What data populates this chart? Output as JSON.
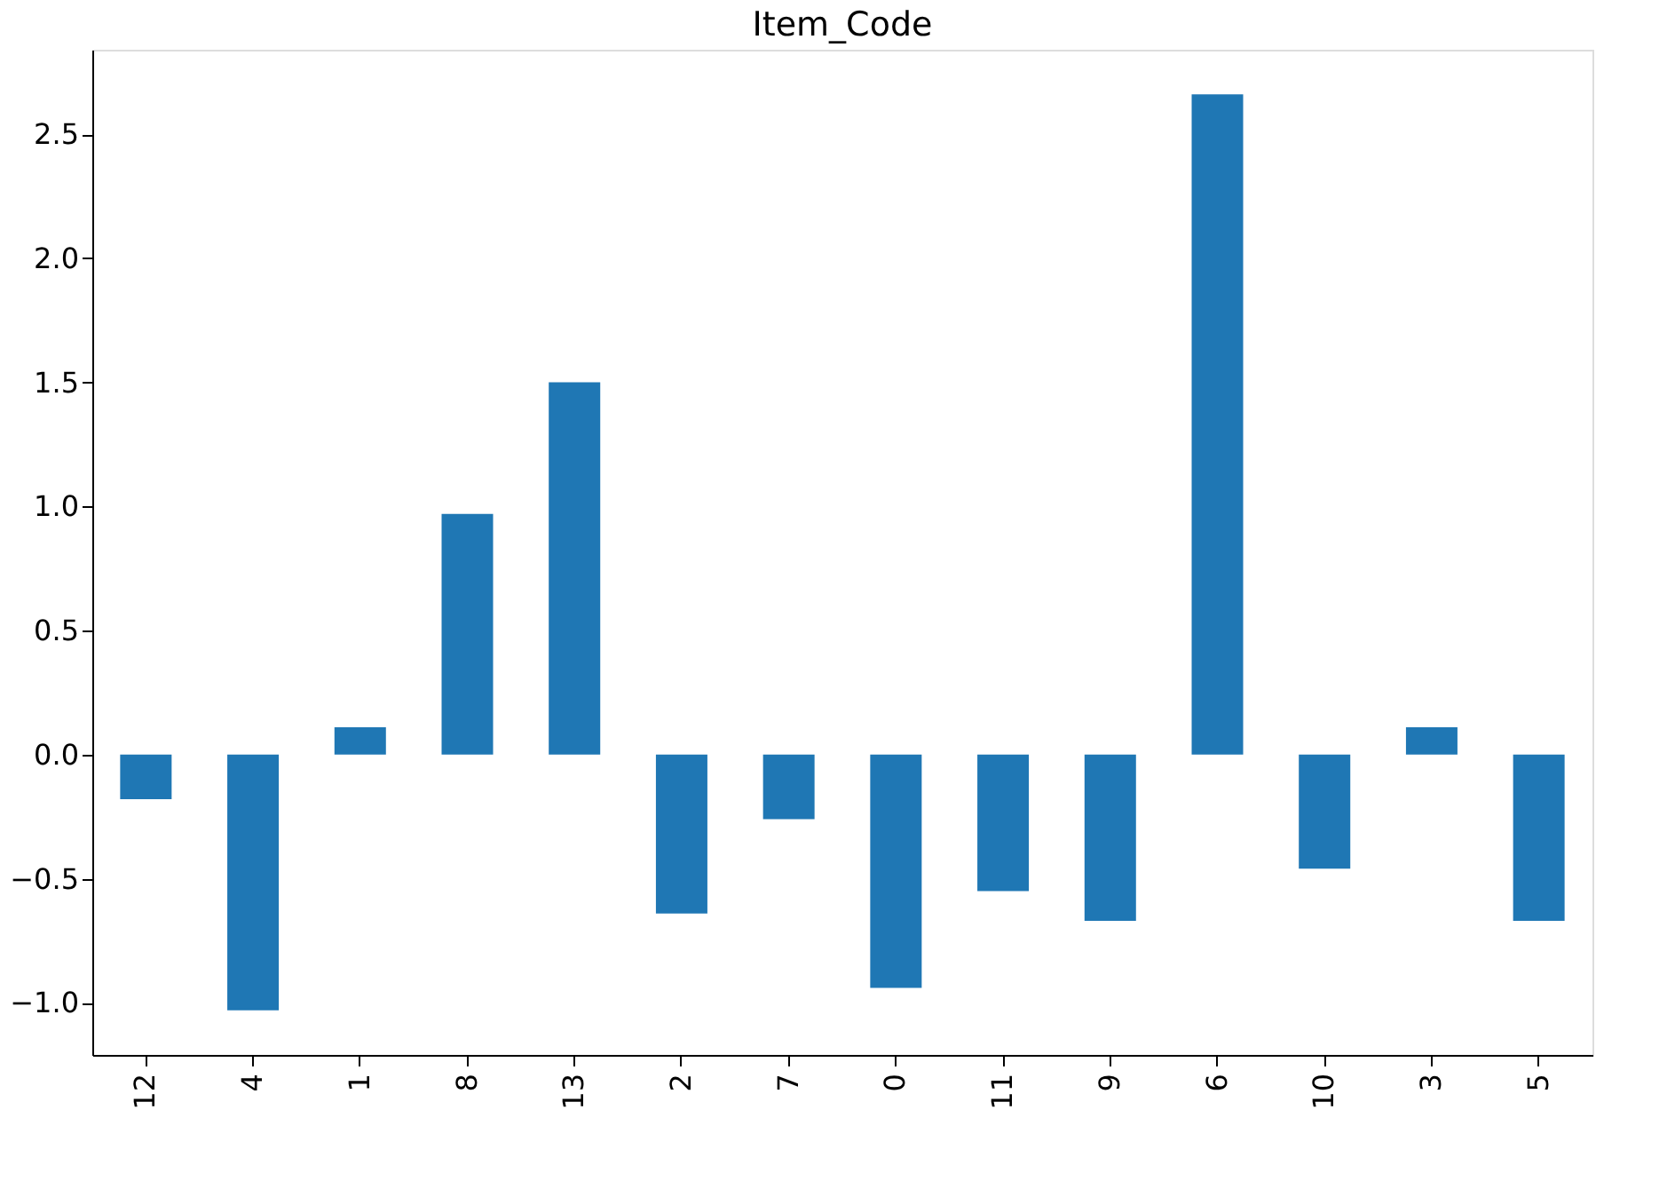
{
  "chart_data": {
    "type": "bar",
    "title": "Item_Code",
    "categories": [
      "12",
      "4",
      "1",
      "8",
      "13",
      "2",
      "7",
      "0",
      "11",
      "9",
      "6",
      "10",
      "3",
      "5"
    ],
    "values": [
      -0.18,
      -1.03,
      0.11,
      0.97,
      1.5,
      -0.64,
      -0.26,
      -0.94,
      -0.55,
      -0.67,
      2.66,
      -0.46,
      0.11,
      -0.67
    ],
    "color": "#1f77b4",
    "ylim": [
      -1.21,
      2.84
    ],
    "yticks": [
      {
        "value": -1.0,
        "label": "−1.0"
      },
      {
        "value": -0.5,
        "label": "−0.5"
      },
      {
        "value": 0.0,
        "label": "0.0"
      },
      {
        "value": 0.5,
        "label": "0.5"
      },
      {
        "value": 1.0,
        "label": "1.0"
      },
      {
        "value": 1.5,
        "label": "1.5"
      },
      {
        "value": 2.0,
        "label": "2.0"
      },
      {
        "value": 2.5,
        "label": "2.5"
      }
    ],
    "grid": false
  }
}
